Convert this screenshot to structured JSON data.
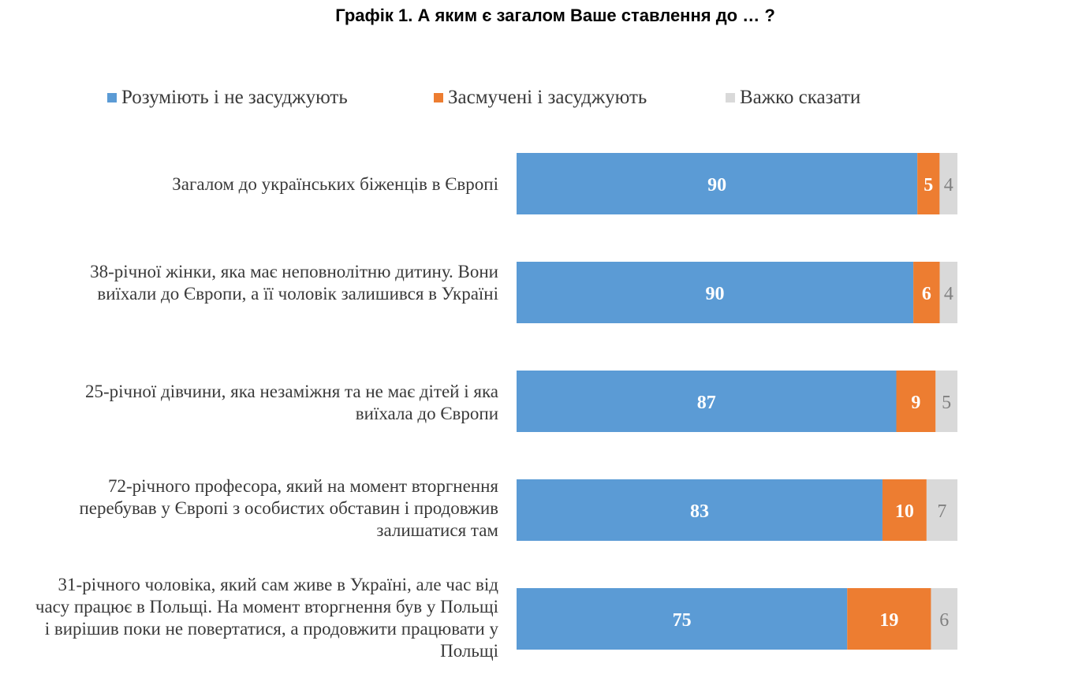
{
  "chart_data": {
    "type": "bar",
    "orientation": "horizontal",
    "stacked": true,
    "title": "Графік 1. А яким є загалом Ваше ставлення до … ?",
    "categories": [
      "Загалом до українських біженців в Європі",
      "38-річної жінки, яка має неповнолітню дитину. Вони виїхали до Європи, а її чоловік залишився в Україні",
      "25-річної дівчини, яка незаміжня та не має дітей і яка виїхала до Європи",
      "72-річного професора, який на момент вторгнення перебував у Європі з особистих обставин і продовжив залишатися там",
      "31-річного чоловіка, який сам живе в Україні, але час від часу працює в Польщі. На момент вторгнення був у Польщі і вирішив поки не повертатися, а продовжити працювати у Польщі"
    ],
    "series": [
      {
        "name": "Розуміють і не засуджують",
        "color": "#5b9bd5",
        "values": [
          90,
          90,
          87,
          83,
          75
        ]
      },
      {
        "name": "Засмучені і засуджують",
        "color": "#ed7d31",
        "values": [
          5,
          6,
          9,
          10,
          19
        ]
      },
      {
        "name": "Важко сказати",
        "color": "#d9d9d9",
        "values": [
          4,
          4,
          5,
          7,
          6
        ]
      }
    ],
    "xlim": [
      0,
      100
    ],
    "legend_position": "top",
    "grid": false
  }
}
